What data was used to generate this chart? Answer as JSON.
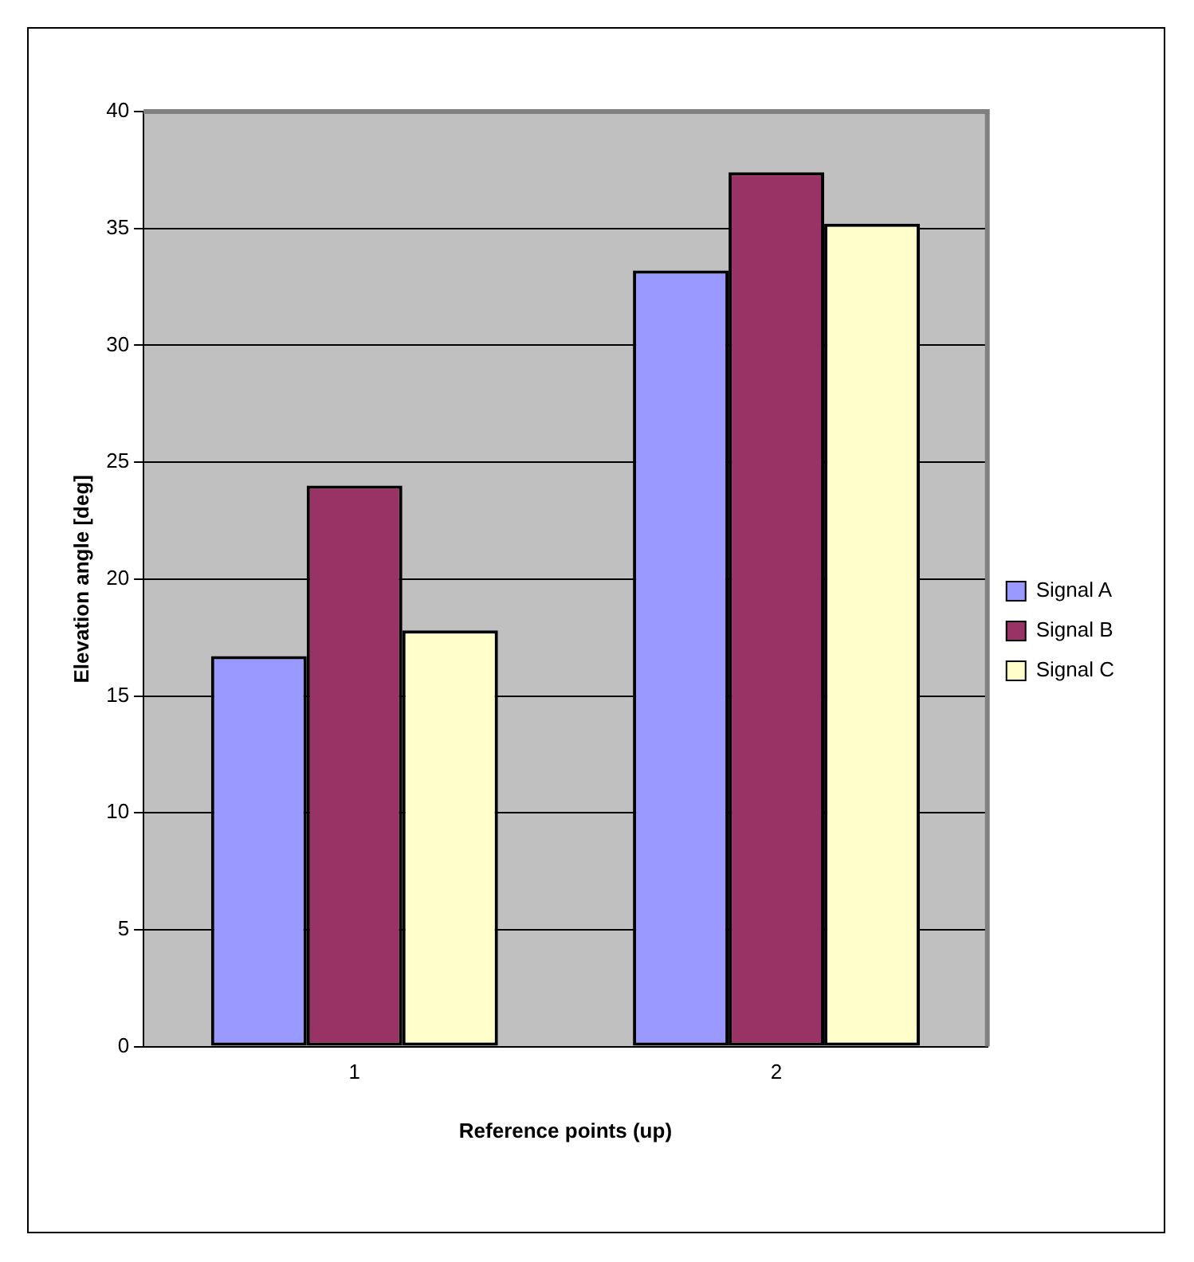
{
  "chart_data": {
    "type": "bar",
    "xlabel": "Reference points (up)",
    "ylabel": "Elevation angle [deg]",
    "categories": [
      "1",
      "2"
    ],
    "series": [
      {
        "name": "Signal A",
        "color": "#9999ff",
        "values": [
          16.7,
          33.2
        ]
      },
      {
        "name": "Signal B",
        "color": "#993366",
        "values": [
          24.0,
          37.4
        ]
      },
      {
        "name": "Signal C",
        "color": "#ffffcc",
        "values": [
          17.8,
          35.2
        ]
      }
    ],
    "ylim": [
      0,
      40
    ],
    "yticks": [
      0,
      5,
      10,
      15,
      20,
      25,
      30,
      35,
      40
    ],
    "grid": "y",
    "legend": "right"
  }
}
